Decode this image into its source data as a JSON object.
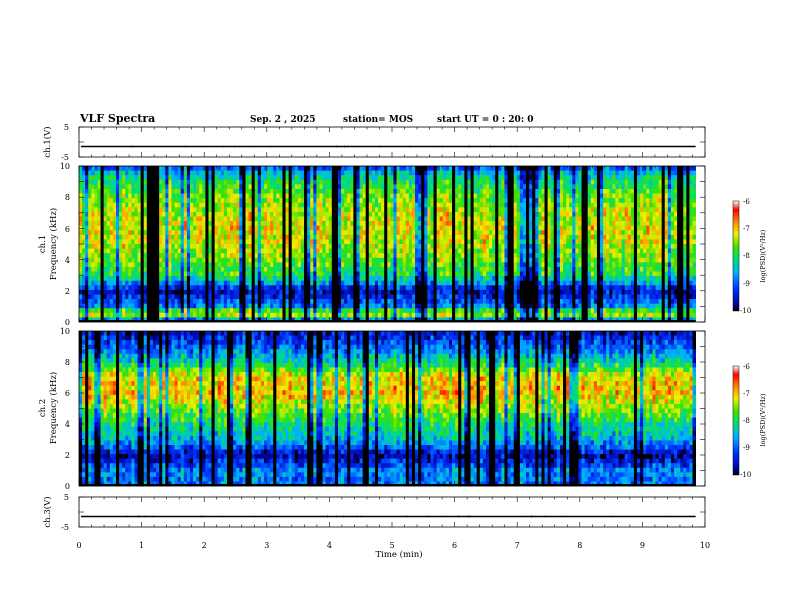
{
  "header": {
    "title": "VLF Spectra",
    "date": "Sep. 2 , 2025",
    "station": "station= MOS",
    "start_ut": "start UT =  0 : 20: 0"
  },
  "chart_data": [
    {
      "type": "line",
      "name": "ch1_waveform",
      "ylabel": "ch.1(V)",
      "yticks": [
        "5",
        "-5"
      ],
      "ylim": [
        -5,
        5
      ],
      "level": -1.5,
      "xlim": [
        0,
        10
      ],
      "data_end_min": 9.85
    },
    {
      "type": "heatmap",
      "name": "ch1_spectrogram",
      "ylabel": "ch.1",
      "ylabel2": "Frequency (kHz)",
      "yticks": [
        "0",
        "2",
        "4",
        "6",
        "8",
        "10"
      ],
      "ylim": [
        0,
        10
      ],
      "xlim": [
        0,
        10
      ],
      "data_end_min": 9.85,
      "colorbar": {
        "label": "log(PSD)(V²/Hz)",
        "range": [
          -10,
          -6
        ],
        "ticks": [
          "-6",
          "-7",
          "-8",
          "-9",
          "-10"
        ]
      },
      "band_intensity": [
        {
          "f": 0.3,
          "v": -8.6
        },
        {
          "f": 0.5,
          "v": -7.0
        },
        {
          "f": 1.0,
          "v": -8.8
        },
        {
          "f": 1.5,
          "v": -9.2
        },
        {
          "f": 2.0,
          "v": -9.6
        },
        {
          "f": 2.5,
          "v": -8.7
        },
        {
          "f": 3.0,
          "v": -8.0
        },
        {
          "f": 4.0,
          "v": -7.6
        },
        {
          "f": 5.0,
          "v": -7.3
        },
        {
          "f": 6.0,
          "v": -7.2
        },
        {
          "f": 7.0,
          "v": -7.3
        },
        {
          "f": 8.0,
          "v": -7.6
        },
        {
          "f": 9.0,
          "v": -8.0
        },
        {
          "f": 9.7,
          "v": -8.6
        },
        {
          "f": 10.0,
          "v": -9.3
        }
      ]
    },
    {
      "type": "heatmap",
      "name": "ch2_spectrogram",
      "ylabel": "ch.2",
      "ylabel2": "Frequency (kHz)",
      "yticks": [
        "0",
        "2",
        "4",
        "6",
        "8",
        "10"
      ],
      "ylim": [
        0,
        10
      ],
      "xlim": [
        0,
        10
      ],
      "data_end_min": 9.85,
      "colorbar": {
        "label": "log(PSD)(V²/Hz)",
        "range": [
          -10,
          -6
        ],
        "ticks": [
          "-6",
          "-7",
          "-8",
          "-9",
          "-10"
        ]
      },
      "band_intensity": [
        {
          "f": 0.3,
          "v": -8.9
        },
        {
          "f": 1.0,
          "v": -8.8
        },
        {
          "f": 1.5,
          "v": -9.3
        },
        {
          "f": 2.0,
          "v": -9.7
        },
        {
          "f": 2.5,
          "v": -9.0
        },
        {
          "f": 3.0,
          "v": -8.5
        },
        {
          "f": 4.0,
          "v": -8.1
        },
        {
          "f": 5.0,
          "v": -7.5
        },
        {
          "f": 6.0,
          "v": -7.0
        },
        {
          "f": 7.0,
          "v": -7.1
        },
        {
          "f": 8.0,
          "v": -8.2
        },
        {
          "f": 9.0,
          "v": -9.0
        },
        {
          "f": 10.0,
          "v": -9.6
        }
      ]
    },
    {
      "type": "line",
      "name": "ch3_waveform",
      "ylabel": "ch.3(V)",
      "yticks": [
        "5",
        "-5"
      ],
      "ylim": [
        -5,
        5
      ],
      "level": -1.5,
      "xlim": [
        0,
        10
      ],
      "data_end_min": 9.85
    }
  ],
  "x_axis": {
    "label": "Time (min)",
    "ticks": [
      "0",
      "1",
      "2",
      "3",
      "4",
      "5",
      "6",
      "7",
      "8",
      "9",
      "10"
    ]
  }
}
